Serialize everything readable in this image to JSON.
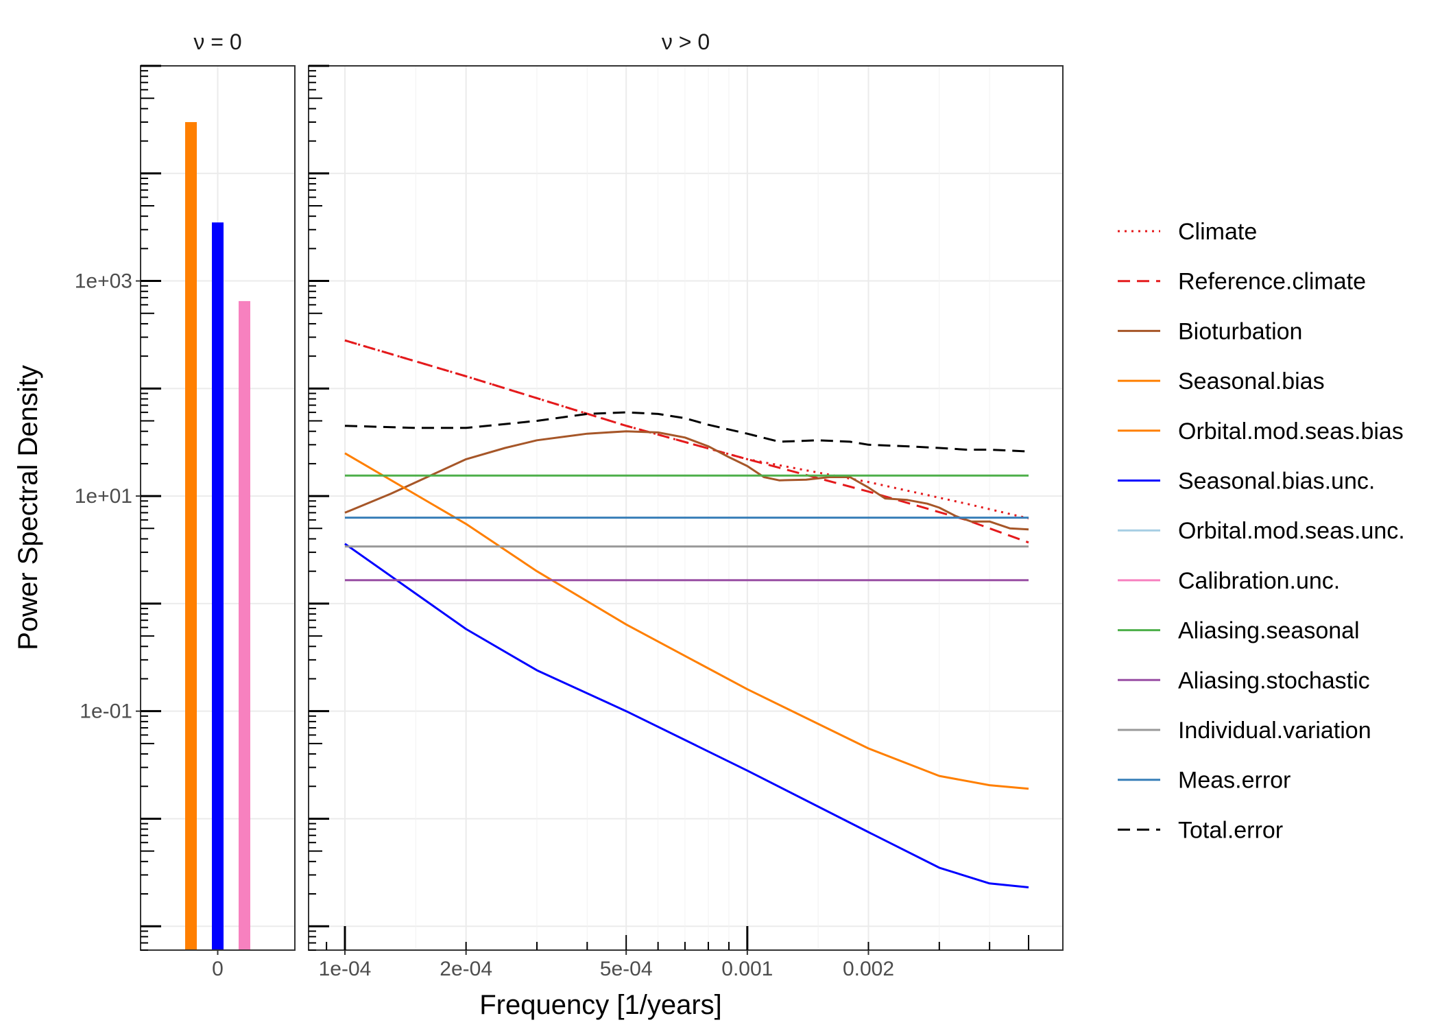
{
  "chart_data": {
    "type": "line",
    "log_x": true,
    "log_y": true,
    "ylabel": "Power Spectral Density",
    "xlabel": "Frequency [1/years]",
    "ylim": [
      0.0006,
      100000
    ],
    "y_ticks": [
      {
        "value": 1000,
        "label": "1e+03"
      },
      {
        "value": 10,
        "label": "1e+01"
      },
      {
        "value": 0.1,
        "label": "1e-01"
      }
    ],
    "panels": [
      {
        "strip": "ν = 0",
        "type": "bar",
        "x_ticks": [
          {
            "value": 0,
            "label": "0"
          }
        ],
        "bars": [
          {
            "series": "Seasonal.bias",
            "value": 30000,
            "color": "#FF7F00"
          },
          {
            "series": "Seasonal.bias.unc.",
            "value": 3500,
            "color": "#0000FF"
          },
          {
            "series": "Calibration.unc.",
            "value": 650,
            "color": "#F781BF"
          }
        ]
      },
      {
        "strip": "ν > 0",
        "type": "line",
        "xlim": [
          0.0001,
          0.005
        ],
        "x_ticks": [
          {
            "value": 0.0001,
            "label": "1e-04"
          },
          {
            "value": 0.0002,
            "label": "2e-04"
          },
          {
            "value": 0.0005,
            "label": "5e-04"
          },
          {
            "value": 0.001,
            "label": "0.001"
          },
          {
            "value": 0.002,
            "label": "0.002"
          }
        ],
        "series": [
          {
            "name": "Climate",
            "color": "#E41A1C",
            "dash": "dotted",
            "x": [
              0.0001,
              0.0002,
              0.0005,
              0.001,
              0.002,
              0.0035,
              0.005
            ],
            "y": [
              280,
              130,
              45,
              22,
              13.5,
              8.5,
              6.2
            ]
          },
          {
            "name": "Reference.climate",
            "color": "#E41A1C",
            "dash": "dashed",
            "x": [
              0.0001,
              0.0002,
              0.0005,
              0.001,
              0.002,
              0.0035,
              0.005
            ],
            "y": [
              280,
              130,
              45,
              22,
              11,
              6,
              3.7
            ]
          },
          {
            "name": "Bioturbation",
            "color": "#A65628",
            "dash": "solid",
            "x": [
              0.0001,
              0.00013,
              0.00016,
              0.0002,
              0.00025,
              0.0003,
              0.0004,
              0.0005,
              0.0006,
              0.0007,
              0.0008,
              0.0009,
              0.001,
              0.0011,
              0.0012,
              0.0014,
              0.0016,
              0.0018,
              0.002,
              0.0022,
              0.0025,
              0.0028,
              0.003,
              0.0033,
              0.0036,
              0.004,
              0.0045,
              0.005
            ],
            "y": [
              7,
              10.5,
              15,
              22,
              28,
              33,
              38,
              40,
              39,
              35,
              29,
              23,
              19,
              15,
              14,
              14.2,
              15,
              15,
              12,
              9.5,
              9.2,
              8.5,
              7.8,
              6.5,
              5.8,
              5.8,
              5.0,
              4.9
            ]
          },
          {
            "name": "Seasonal.bias",
            "color": "#FF7F00",
            "dash": "solid",
            "x": [
              0.0001,
              0.0002,
              0.0003,
              0.0005,
              0.001,
              0.002,
              0.003,
              0.004,
              0.005
            ],
            "y": [
              25,
              5.5,
              2,
              0.64,
              0.16,
              0.045,
              0.025,
              0.0205,
              0.019
            ]
          },
          {
            "name": "Orbital.mod.seas.bias",
            "color": "#FF7F00",
            "dash": "solid",
            "x": [],
            "y": []
          },
          {
            "name": "Seasonal.bias.unc.",
            "color": "#0000FF",
            "dash": "solid",
            "x": [
              0.0001,
              0.0002,
              0.0003,
              0.0005,
              0.001,
              0.002,
              0.003,
              0.004,
              0.005
            ],
            "y": [
              3.6,
              0.58,
              0.24,
              0.1,
              0.028,
              0.0075,
              0.0035,
              0.0025,
              0.0023
            ]
          },
          {
            "name": "Orbital.mod.seas.unc.",
            "color": "#A6CEE3",
            "dash": "solid",
            "x": [],
            "y": []
          },
          {
            "name": "Calibration.unc.",
            "color": "#F781BF",
            "dash": "solid",
            "x": [],
            "y": []
          },
          {
            "name": "Aliasing.seasonal",
            "color": "#4DAF4A",
            "dash": "solid",
            "x": [
              0.0001,
              0.005
            ],
            "y": [
              15.5,
              15.5
            ]
          },
          {
            "name": "Aliasing.stochastic",
            "color": "#984EA3",
            "dash": "solid",
            "x": [
              0.0001,
              0.005
            ],
            "y": [
              1.65,
              1.65
            ]
          },
          {
            "name": "Individual.variation",
            "color": "#999999",
            "dash": "solid",
            "x": [
              0.0001,
              0.005
            ],
            "y": [
              3.4,
              3.4
            ]
          },
          {
            "name": "Meas.error",
            "color": "#377EB8",
            "dash": "solid",
            "x": [
              0.0001,
              0.005
            ],
            "y": [
              6.3,
              6.3
            ]
          },
          {
            "name": "Total.error",
            "color": "#000000",
            "dash": "dashed",
            "x": [
              0.0001,
              0.00015,
              0.0002,
              0.0003,
              0.0004,
              0.0005,
              0.0006,
              0.0007,
              0.0008,
              0.001,
              0.0012,
              0.0015,
              0.0018,
              0.002,
              0.0025,
              0.003,
              0.0035,
              0.004,
              0.005
            ],
            "y": [
              45,
              43,
              43,
              50,
              58,
              60,
              58,
              53,
              46,
              38,
              32,
              33,
              32,
              30,
              29,
              28,
              27,
              27,
              26
            ]
          }
        ]
      }
    ],
    "legend": {
      "placement": "right",
      "entries": [
        {
          "label": "Climate",
          "color": "#E41A1C",
          "dash": "dotted"
        },
        {
          "label": "Reference.climate",
          "color": "#E41A1C",
          "dash": "dashed"
        },
        {
          "label": "Bioturbation",
          "color": "#A65628",
          "dash": "solid"
        },
        {
          "label": "Seasonal.bias",
          "color": "#FF7F00",
          "dash": "solid"
        },
        {
          "label": "Orbital.mod.seas.bias",
          "color": "#FF7F00",
          "dash": "solid"
        },
        {
          "label": "Seasonal.bias.unc.",
          "color": "#0000FF",
          "dash": "solid"
        },
        {
          "label": "Orbital.mod.seas.unc.",
          "color": "#A6CEE3",
          "dash": "solid"
        },
        {
          "label": "Calibration.unc.",
          "color": "#F781BF",
          "dash": "solid"
        },
        {
          "label": "Aliasing.seasonal",
          "color": "#4DAF4A",
          "dash": "solid"
        },
        {
          "label": "Aliasing.stochastic",
          "color": "#984EA3",
          "dash": "solid"
        },
        {
          "label": "Individual.variation",
          "color": "#999999",
          "dash": "solid"
        },
        {
          "label": "Meas.error",
          "color": "#377EB8",
          "dash": "solid"
        },
        {
          "label": "Total.error",
          "color": "#000000",
          "dash": "dashed"
        }
      ]
    },
    "grid": true
  }
}
